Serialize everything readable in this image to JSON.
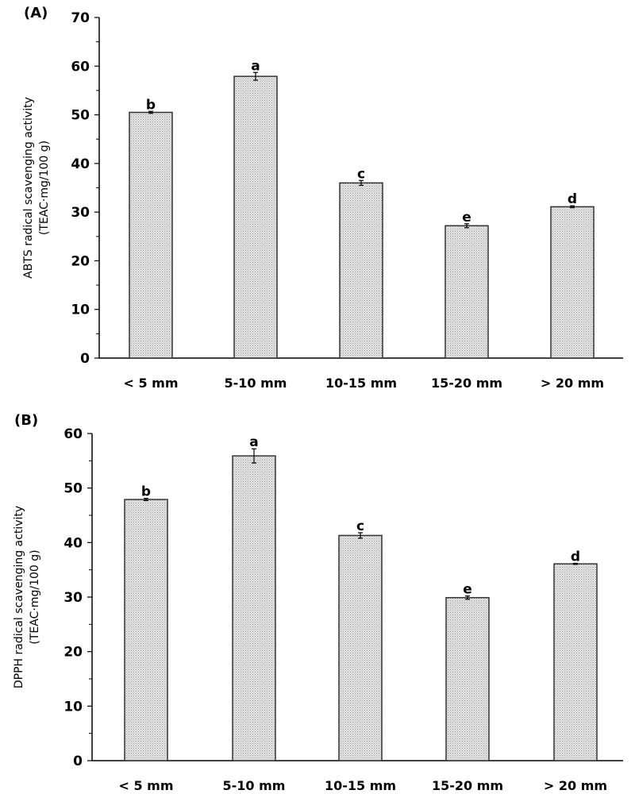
{
  "chart_data": [
    {
      "type": "bar",
      "panel_label": "(A)",
      "categories": [
        "< 5 mm",
        "5-10 mm",
        "10-15 mm",
        "15-20 mm",
        "> 20 mm"
      ],
      "values": [
        50.5,
        57.9,
        36.0,
        27.2,
        31.1
      ],
      "errors": [
        0.2,
        0.8,
        0.5,
        0.4,
        0.2
      ],
      "significance_letters": [
        "b",
        "a",
        "c",
        "e",
        "d"
      ],
      "ylabel_line1": "ABTS radical scavenging activity",
      "ylabel_line2": "(TEAC·mg/100 g)",
      "xlabel": "",
      "ylim": [
        0,
        70
      ],
      "yticks": [
        0,
        10,
        20,
        30,
        40,
        50,
        60,
        70
      ],
      "grid": false,
      "bar_fill": "#d9d9d9"
    },
    {
      "type": "bar",
      "panel_label": "(B)",
      "categories": [
        "< 5 mm",
        "5-10 mm",
        "10-15 mm",
        "15-20 mm",
        "> 20 mm"
      ],
      "values": [
        47.9,
        55.9,
        41.3,
        29.9,
        36.1
      ],
      "errors": [
        0.2,
        1.3,
        0.5,
        0.3,
        0.1
      ],
      "significance_letters": [
        "b",
        "a",
        "c",
        "e",
        "d"
      ],
      "ylabel_line1": "DPPH radical scavenging activity",
      "ylabel_line2": "(TEAC·mg/100 g)",
      "xlabel": "",
      "ylim": [
        0,
        60
      ],
      "yticks": [
        0,
        10,
        20,
        30,
        40,
        50,
        60
      ],
      "grid": false,
      "bar_fill": "#d9d9d9"
    }
  ]
}
